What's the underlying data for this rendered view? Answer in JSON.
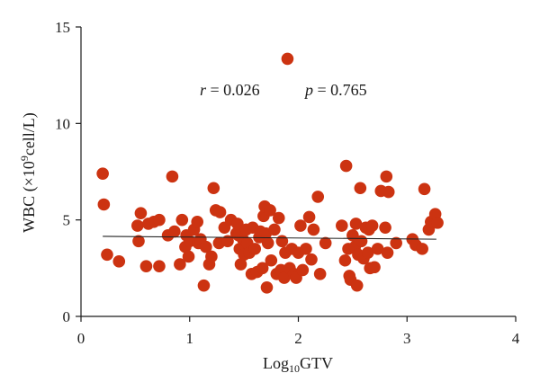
{
  "chart_data": {
    "type": "scatter",
    "title": "",
    "xlabel": "Log10GTV",
    "xlabel_parts": {
      "base": "Log",
      "sub": "10",
      "rest": "GTV"
    },
    "ylabel": "WBC (×10⁹cell/L)",
    "ylabel_parts": {
      "pre": "WBC (×10",
      "sup": "9",
      "post": "cell/L)"
    },
    "xlim": [
      0,
      4
    ],
    "ylim": [
      0,
      15
    ],
    "xticks": [
      "0",
      "1",
      "2",
      "3",
      "4"
    ],
    "yticks": [
      "0",
      "5",
      "10",
      "15"
    ],
    "grid": false,
    "legend": "none",
    "colors": {
      "points": "#cc3311",
      "fit_line": "#222222"
    },
    "annotations": {
      "r": "r = 0.026",
      "p": "p = 0.765"
    },
    "fit_line": {
      "x": [
        0.2,
        3.27
      ],
      "y": [
        4.15,
        4.0
      ]
    },
    "points": [
      {
        "x": 0.2,
        "y": 7.4
      },
      {
        "x": 0.21,
        "y": 5.8
      },
      {
        "x": 0.24,
        "y": 3.2
      },
      {
        "x": 0.35,
        "y": 2.85
      },
      {
        "x": 0.52,
        "y": 4.7
      },
      {
        "x": 0.53,
        "y": 3.9
      },
      {
        "x": 0.55,
        "y": 5.35
      },
      {
        "x": 0.6,
        "y": 2.6
      },
      {
        "x": 0.62,
        "y": 4.8
      },
      {
        "x": 0.67,
        "y": 4.9
      },
      {
        "x": 0.72,
        "y": 5.0
      },
      {
        "x": 0.72,
        "y": 2.6
      },
      {
        "x": 0.8,
        "y": 4.2
      },
      {
        "x": 0.84,
        "y": 7.25
      },
      {
        "x": 0.86,
        "y": 4.4
      },
      {
        "x": 0.91,
        "y": 2.7
      },
      {
        "x": 0.93,
        "y": 5.0
      },
      {
        "x": 0.96,
        "y": 3.6
      },
      {
        "x": 0.97,
        "y": 4.2
      },
      {
        "x": 0.99,
        "y": 3.1
      },
      {
        "x": 1.0,
        "y": 3.9
      },
      {
        "x": 1.04,
        "y": 4.5
      },
      {
        "x": 1.07,
        "y": 4.9
      },
      {
        "x": 1.08,
        "y": 3.8
      },
      {
        "x": 1.1,
        "y": 4.0
      },
      {
        "x": 1.13,
        "y": 1.6
      },
      {
        "x": 1.15,
        "y": 3.6
      },
      {
        "x": 1.18,
        "y": 2.7
      },
      {
        "x": 1.2,
        "y": 3.1
      },
      {
        "x": 1.22,
        "y": 6.65
      },
      {
        "x": 1.24,
        "y": 5.5
      },
      {
        "x": 1.27,
        "y": 3.8
      },
      {
        "x": 1.28,
        "y": 5.4
      },
      {
        "x": 1.32,
        "y": 4.6
      },
      {
        "x": 1.35,
        "y": 3.9
      },
      {
        "x": 1.38,
        "y": 5.0
      },
      {
        "x": 1.43,
        "y": 4.3
      },
      {
        "x": 1.44,
        "y": 4.8
      },
      {
        "x": 1.45,
        "y": 4.2
      },
      {
        "x": 1.46,
        "y": 3.5
      },
      {
        "x": 1.47,
        "y": 2.7
      },
      {
        "x": 1.49,
        "y": 4.0
      },
      {
        "x": 1.5,
        "y": 3.2
      },
      {
        "x": 1.52,
        "y": 4.5
      },
      {
        "x": 1.53,
        "y": 3.8
      },
      {
        "x": 1.55,
        "y": 3.3
      },
      {
        "x": 1.57,
        "y": 2.2
      },
      {
        "x": 1.58,
        "y": 4.6
      },
      {
        "x": 1.6,
        "y": 3.5
      },
      {
        "x": 1.62,
        "y": 2.3
      },
      {
        "x": 1.64,
        "y": 4.1
      },
      {
        "x": 1.65,
        "y": 4.4
      },
      {
        "x": 1.67,
        "y": 2.5
      },
      {
        "x": 1.68,
        "y": 5.2
      },
      {
        "x": 1.69,
        "y": 5.7
      },
      {
        "x": 1.7,
        "y": 4.3
      },
      {
        "x": 1.71,
        "y": 1.5
      },
      {
        "x": 1.72,
        "y": 3.8
      },
      {
        "x": 1.74,
        "y": 5.5
      },
      {
        "x": 1.75,
        "y": 2.9
      },
      {
        "x": 1.78,
        "y": 4.5
      },
      {
        "x": 1.8,
        "y": 2.2
      },
      {
        "x": 1.82,
        "y": 5.1
      },
      {
        "x": 1.84,
        "y": 2.4
      },
      {
        "x": 1.85,
        "y": 3.9
      },
      {
        "x": 1.87,
        "y": 2.0
      },
      {
        "x": 1.88,
        "y": 3.3
      },
      {
        "x": 1.9,
        "y": 13.35
      },
      {
        "x": 1.92,
        "y": 2.5
      },
      {
        "x": 1.94,
        "y": 3.5
      },
      {
        "x": 1.96,
        "y": 2.2
      },
      {
        "x": 1.98,
        "y": 2.0
      },
      {
        "x": 2.0,
        "y": 3.3
      },
      {
        "x": 2.02,
        "y": 4.7
      },
      {
        "x": 2.04,
        "y": 2.4
      },
      {
        "x": 2.07,
        "y": 3.5
      },
      {
        "x": 2.1,
        "y": 5.15
      },
      {
        "x": 2.12,
        "y": 2.95
      },
      {
        "x": 2.14,
        "y": 4.5
      },
      {
        "x": 2.18,
        "y": 6.2
      },
      {
        "x": 2.2,
        "y": 2.2
      },
      {
        "x": 2.25,
        "y": 3.8
      },
      {
        "x": 2.4,
        "y": 4.7
      },
      {
        "x": 2.43,
        "y": 2.9
      },
      {
        "x": 2.44,
        "y": 7.8
      },
      {
        "x": 2.46,
        "y": 3.5
      },
      {
        "x": 2.47,
        "y": 2.1
      },
      {
        "x": 2.48,
        "y": 1.9
      },
      {
        "x": 2.5,
        "y": 4.2
      },
      {
        "x": 2.52,
        "y": 3.6
      },
      {
        "x": 2.53,
        "y": 4.8
      },
      {
        "x": 2.54,
        "y": 1.6
      },
      {
        "x": 2.55,
        "y": 3.2
      },
      {
        "x": 2.57,
        "y": 6.65
      },
      {
        "x": 2.58,
        "y": 3.9
      },
      {
        "x": 2.6,
        "y": 3.0
      },
      {
        "x": 2.62,
        "y": 4.6
      },
      {
        "x": 2.64,
        "y": 3.3
      },
      {
        "x": 2.65,
        "y": 4.5
      },
      {
        "x": 2.66,
        "y": 2.5
      },
      {
        "x": 2.68,
        "y": 4.7
      },
      {
        "x": 2.7,
        "y": 2.55
      },
      {
        "x": 2.73,
        "y": 3.5
      },
      {
        "x": 2.76,
        "y": 6.5
      },
      {
        "x": 2.8,
        "y": 4.6
      },
      {
        "x": 2.81,
        "y": 7.25
      },
      {
        "x": 2.83,
        "y": 6.45
      },
      {
        "x": 2.82,
        "y": 3.3
      },
      {
        "x": 2.9,
        "y": 3.8
      },
      {
        "x": 3.05,
        "y": 4.0
      },
      {
        "x": 3.08,
        "y": 3.7
      },
      {
        "x": 3.14,
        "y": 3.5
      },
      {
        "x": 3.16,
        "y": 6.6
      },
      {
        "x": 3.2,
        "y": 4.5
      },
      {
        "x": 3.22,
        "y": 4.9
      },
      {
        "x": 3.26,
        "y": 5.3
      },
      {
        "x": 3.28,
        "y": 4.85
      }
    ]
  }
}
